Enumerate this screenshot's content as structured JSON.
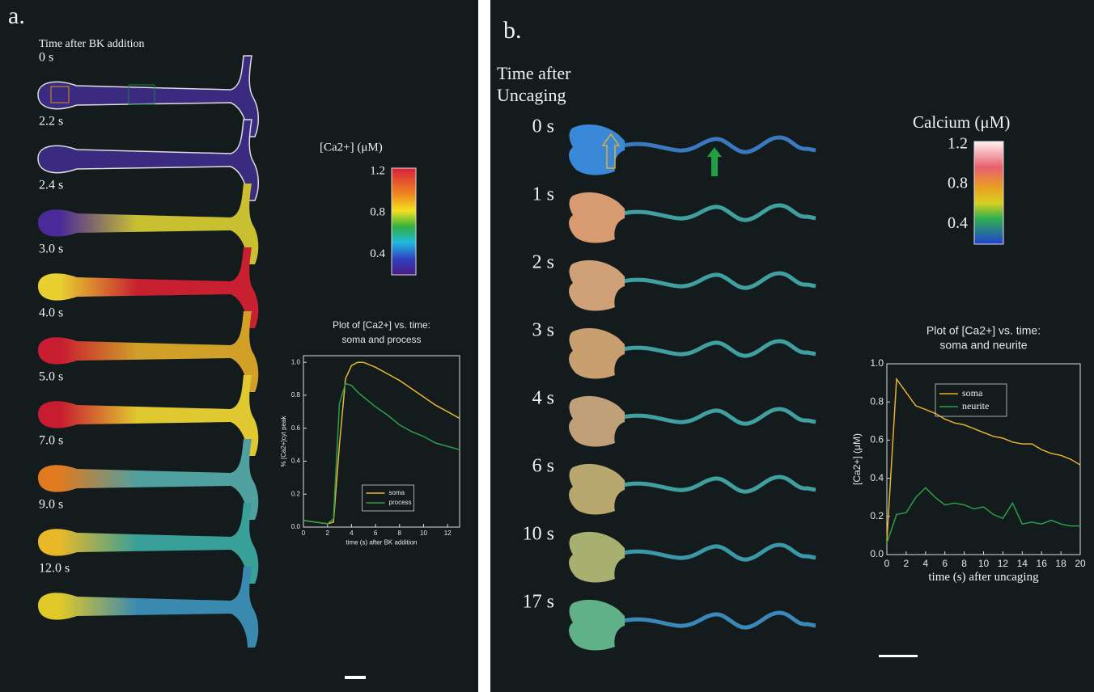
{
  "panels": [
    {
      "label": "a.",
      "time_title": [
        "Time after BK addition"
      ],
      "times": [
        "0 s",
        "2.2 s",
        "2.4 s",
        "3.0 s",
        "4.0 s",
        "5.0 s",
        "7.0 s",
        "9.0 s",
        "12.0 s"
      ],
      "colorbar": {
        "title": "[Ca2+] (μM)",
        "lim": [
          0.2,
          1.23
        ],
        "ticks": [
          0.4,
          0.8,
          1.2
        ]
      }
    },
    {
      "label": "b.",
      "time_title": [
        "Time after",
        "Uncaging"
      ],
      "times": [
        "0 s",
        "1 s",
        "2 s",
        "3 s",
        "4 s",
        "6 s",
        "10 s",
        "17 s"
      ],
      "colorbar": {
        "title": "Calcium (μM)",
        "lim": [
          0.2,
          1.23
        ],
        "ticks": [
          0.4,
          0.8,
          1.2
        ]
      }
    }
  ],
  "chart_data": [
    {
      "type": "line",
      "title": [
        "Plot of [Ca2+] vs. time:",
        "soma and process"
      ],
      "x_label": "time (s) after BK addition",
      "y_label": "% [Ca2+]cyt peak",
      "x": [
        0,
        1,
        2,
        2.5,
        3,
        3.5,
        4,
        4.5,
        5,
        6,
        7,
        8,
        9,
        10,
        11,
        12,
        13
      ],
      "series": [
        {
          "name": "soma",
          "color": "#e8b830",
          "values": [
            0.04,
            0.03,
            0.02,
            0.03,
            0.5,
            0.9,
            0.98,
            1.0,
            1.0,
            0.97,
            0.93,
            0.89,
            0.84,
            0.79,
            0.74,
            0.7,
            0.66
          ]
        },
        {
          "name": "process",
          "color": "#2e9e48",
          "values": [
            0.04,
            0.03,
            0.02,
            0.05,
            0.75,
            0.87,
            0.86,
            0.82,
            0.79,
            0.73,
            0.68,
            0.62,
            0.58,
            0.55,
            0.51,
            0.49,
            0.47
          ]
        }
      ],
      "xlim": [
        0,
        13
      ],
      "xticks": [
        0,
        2,
        4,
        6,
        8,
        10,
        12
      ],
      "ylim": [
        0,
        1.04
      ],
      "yticks": [
        {
          "value": 0,
          "label": "0.0"
        },
        {
          "value": 0.2,
          "label": "0.2"
        },
        {
          "value": 0.4,
          "label": "0.4"
        },
        {
          "value": 0.6,
          "label": "0.6"
        },
        {
          "value": 0.8,
          "label": "0.8"
        },
        {
          "value": 1,
          "label": "1.0"
        }
      ],
      "legend": "lower center"
    },
    {
      "type": "line",
      "title": [
        "Plot of [Ca2+] vs. time:",
        "soma and neurite"
      ],
      "x_label": "time (s) after uncaging",
      "y_label": "[Ca2+] (μM)",
      "x": [
        0,
        1,
        2,
        3,
        4,
        5,
        6,
        7,
        8,
        9,
        10,
        11,
        12,
        13,
        14,
        15,
        16,
        17,
        18,
        19,
        20
      ],
      "series": [
        {
          "name": "soma",
          "color": "#e8b030",
          "values": [
            0.07,
            0.92,
            0.85,
            0.78,
            0.76,
            0.74,
            0.71,
            0.69,
            0.68,
            0.66,
            0.64,
            0.62,
            0.61,
            0.59,
            0.58,
            0.58,
            0.55,
            0.53,
            0.52,
            0.5,
            0.47
          ]
        },
        {
          "name": "neurite",
          "color": "#2e9e48",
          "values": [
            0.06,
            0.21,
            0.22,
            0.3,
            0.35,
            0.3,
            0.26,
            0.27,
            0.26,
            0.24,
            0.25,
            0.21,
            0.19,
            0.27,
            0.16,
            0.17,
            0.16,
            0.18,
            0.16,
            0.15,
            0.15
          ]
        }
      ],
      "xlim": [
        0,
        20
      ],
      "xticks": [
        0,
        2,
        4,
        6,
        8,
        10,
        12,
        14,
        16,
        18,
        20
      ],
      "ylim": [
        0,
        1
      ],
      "yticks": [
        {
          "value": 0,
          "label": "0.0"
        },
        {
          "value": 0.2,
          "label": "0.2"
        },
        {
          "value": 0.4,
          "label": "0.4"
        },
        {
          "value": 0.6,
          "label": "0.6"
        },
        {
          "value": 0.8,
          "label": "0.8"
        },
        {
          "value": 1,
          "label": "1.0"
        }
      ],
      "legend": "upper left"
    }
  ]
}
